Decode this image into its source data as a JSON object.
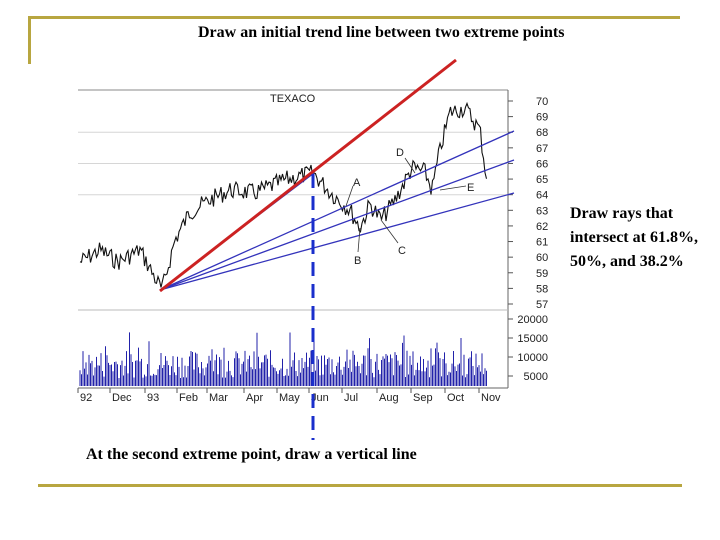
{
  "title": "Draw an initial trend line between two extreme points",
  "right_caption": "Draw rays that intersect at 61.8%, 50%, and 38.2%",
  "bottom_caption": "At the second extreme point, draw a vertical line",
  "chart_data": {
    "type": "line",
    "ticker": "TEXACO",
    "price_ticks": [
      "70",
      "69",
      "68",
      "67",
      "66",
      "65",
      "64",
      "63",
      "62",
      "61",
      "60",
      "59",
      "58",
      "57"
    ],
    "volume_ticks": [
      "20000",
      "15000",
      "10000",
      "5000"
    ],
    "x_ticks": [
      "92",
      "Dec",
      "93",
      "Feb",
      "Mar",
      "Apr",
      "May",
      "Jun",
      "Jul",
      "Aug",
      "Sep",
      "Oct",
      "Nov"
    ],
    "annotations": [
      "A",
      "B",
      "C",
      "D",
      "E"
    ],
    "colors": {
      "trend_line": "#cc2222",
      "rays": "#3333bb",
      "price": "#111111",
      "volume": "#2222aa",
      "vertical": "#1a2fcc"
    }
  }
}
